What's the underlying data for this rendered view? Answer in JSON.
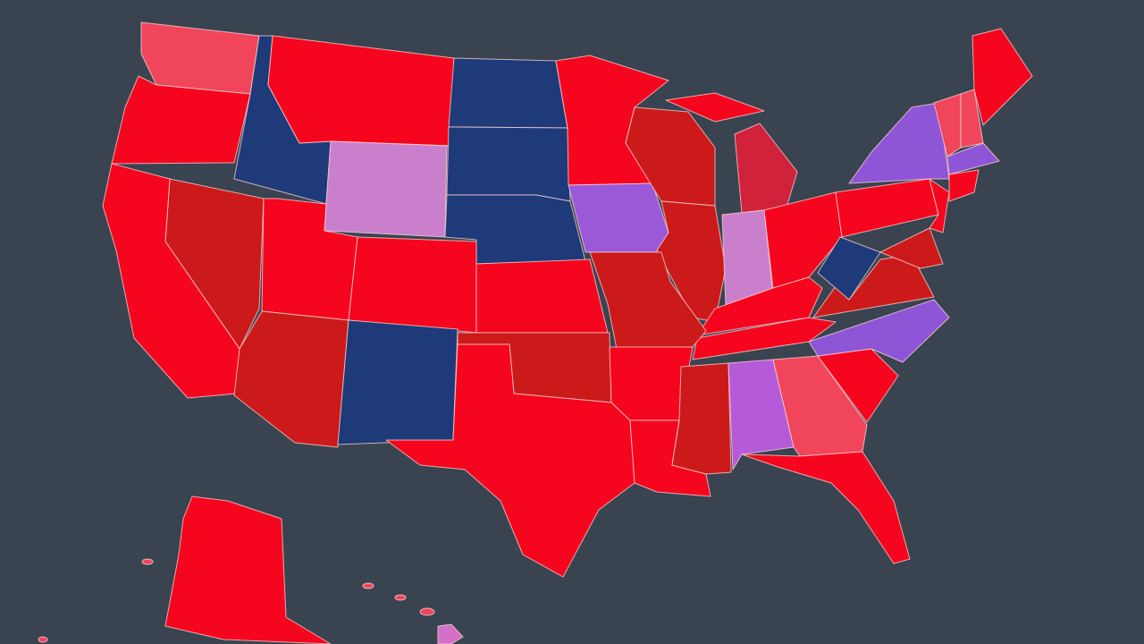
{
  "regions": [
    {
      "color": "#f0455a"
    },
    {
      "color": "#f5051e"
    },
    {
      "color": "#1e3a78"
    },
    {
      "color": "#f5051e"
    },
    {
      "color": "#c97fcc"
    },
    {
      "color": "#1e3a78"
    },
    {
      "color": "#1e3a78"
    },
    {
      "color": "#1e3a78"
    },
    {
      "color": "#f5051e"
    },
    {
      "color": "#9a5ad8"
    },
    {
      "color": "#cc1a1a"
    },
    {
      "color": "#cc1a1a"
    },
    {
      "color": "#d0223a"
    },
    {
      "color": "#f5051e"
    },
    {
      "color": "#c97fcc"
    },
    {
      "color": "#f5051e"
    },
    {
      "color": "#f5051e"
    },
    {
      "color": "#f5051e"
    },
    {
      "color": "#cc1a1a"
    },
    {
      "color": "#f5051e"
    },
    {
      "color": "#f5051e"
    },
    {
      "color": "#f5051e"
    },
    {
      "color": "#cc1a1a"
    },
    {
      "color": "#1e3a78"
    },
    {
      "color": "#f5051e"
    },
    {
      "color": "#cc1a1a"
    },
    {
      "color": "#f5051e"
    },
    {
      "color": "#cc1a1a"
    },
    {
      "color": "#f5051e"
    },
    {
      "color": "#f5051e"
    },
    {
      "color": "#cc1a1a"
    },
    {
      "color": "#b55ad8"
    },
    {
      "color": "#f0455a"
    },
    {
      "color": "#f5051e"
    },
    {
      "color": "#f5051e"
    },
    {
      "color": "#8e55d6"
    },
    {
      "color": "#cc1a1a"
    },
    {
      "color": "#1e3a78"
    },
    {
      "color": "#f5051e"
    },
    {
      "color": "#8e55d6"
    },
    {
      "color": "#f5051e"
    },
    {
      "color": "#cc1a1a"
    },
    {
      "color": "#f0455a"
    },
    {
      "color": "#f0455a"
    },
    {
      "color": "#f5051e"
    },
    {
      "color": "#8e55d6"
    },
    {
      "color": "#f5051e"
    },
    {
      "color": "#f5051e"
    },
    {
      "color": "#d46fc7"
    },
    {
      "color": "#f0455a"
    }
  ]
}
